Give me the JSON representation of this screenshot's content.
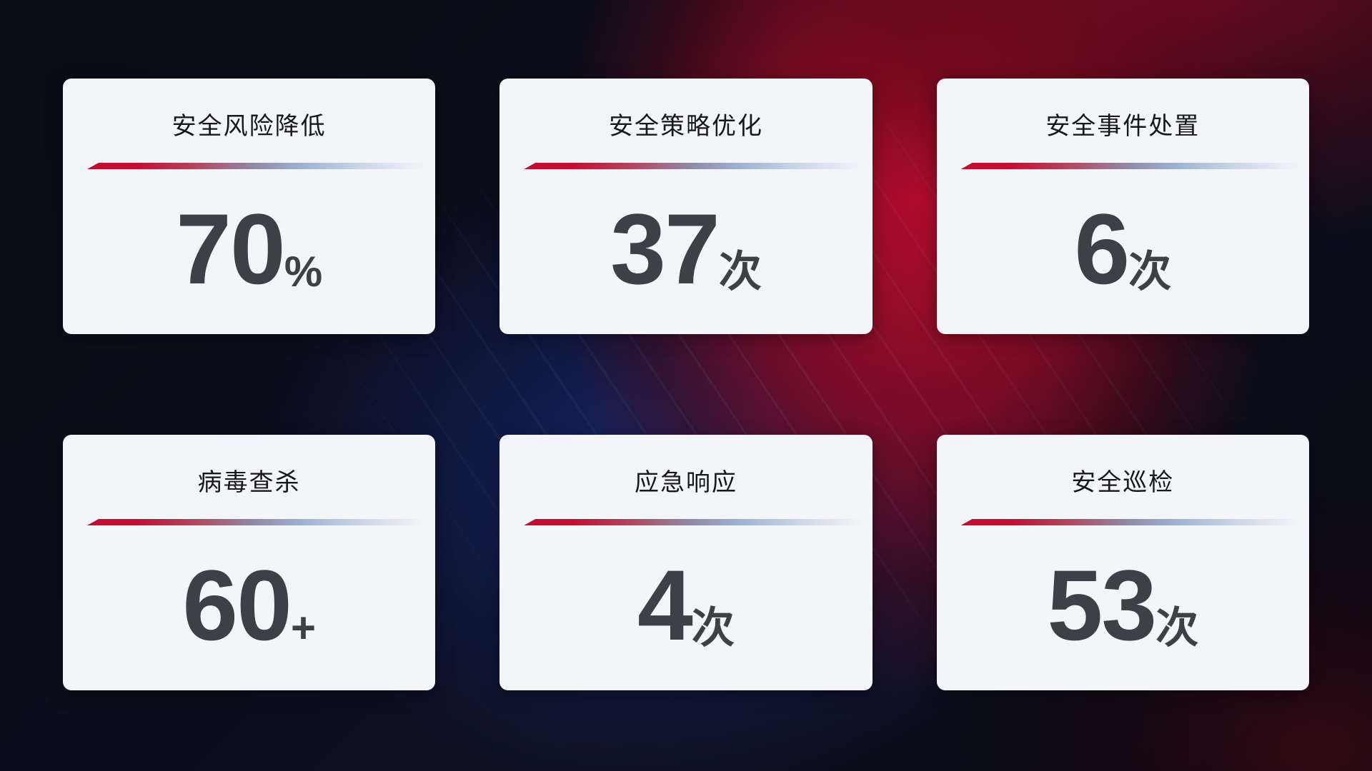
{
  "colors": {
    "card-bg": "#f4f5f8",
    "title-color": "#17181c",
    "value-color": "#3d4045",
    "divider-red": "#c20f31",
    "divider-blue": "#9fb2d4",
    "bg-navy": "#0c1122",
    "bg-blue-glow": "#182a6e",
    "bg-red-glow": "#ba0c2c"
  },
  "cards": [
    {
      "title": "安全风险降低",
      "value": "70",
      "unit": "%"
    },
    {
      "title": "安全策略优化",
      "value": "37",
      "unit": "次"
    },
    {
      "title": "安全事件处置",
      "value": "6",
      "unit": "次"
    },
    {
      "title": "病毒查杀",
      "value": "60",
      "unit": "+"
    },
    {
      "title": "应急响应",
      "value": "4",
      "unit": "次"
    },
    {
      "title": "安全巡检",
      "value": "53",
      "unit": "次"
    }
  ]
}
